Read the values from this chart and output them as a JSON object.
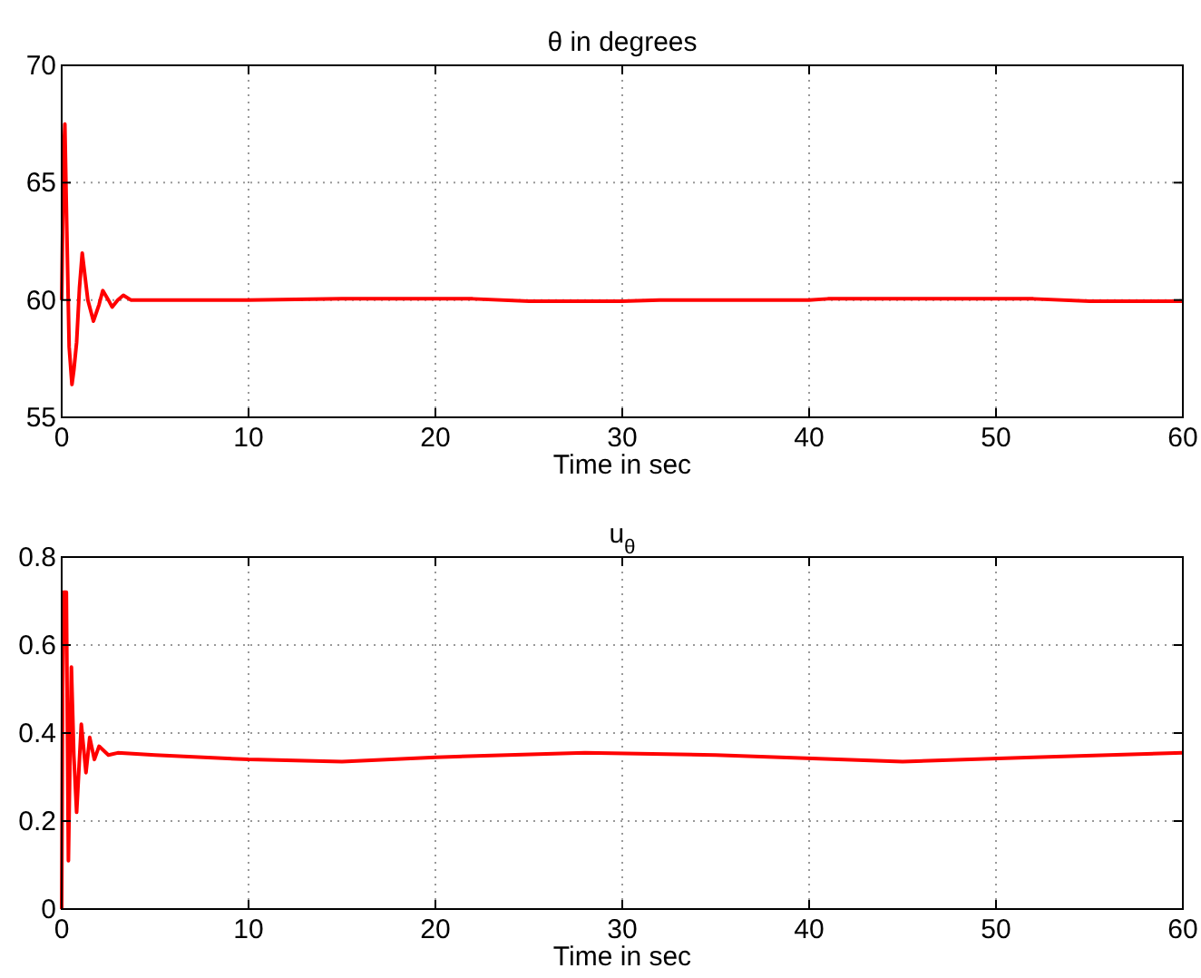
{
  "chart_data": [
    {
      "type": "line",
      "title": "θ in degrees",
      "xlabel": "Time in sec",
      "xlim": [
        0,
        60
      ],
      "xticks": [
        0,
        10,
        20,
        30,
        40,
        50,
        60
      ],
      "ylim": [
        55,
        70
      ],
      "yticks": [
        55,
        60,
        65,
        70
      ],
      "grid": true,
      "series": [
        {
          "color": "#ff0000",
          "x": [
            0,
            0.1,
            0.17,
            0.25,
            0.4,
            0.55,
            0.65,
            0.8,
            0.95,
            1.1,
            1.4,
            1.7,
            2.0,
            2.2,
            2.5,
            2.7,
            3.0,
            3.3,
            3.7,
            4,
            6,
            10,
            15,
            22,
            25,
            30,
            32,
            40,
            41,
            45,
            52,
            55,
            60
          ],
          "values": [
            60,
            66,
            67.5,
            64,
            58,
            56.4,
            57,
            58.2,
            60.5,
            62,
            60,
            59.1,
            59.8,
            60.4,
            60,
            59.7,
            60,
            60.2,
            60,
            60,
            60,
            60,
            60.05,
            60.05,
            59.95,
            59.95,
            60,
            60,
            60.05,
            60.05,
            60.05,
            59.95,
            59.95
          ]
        }
      ]
    },
    {
      "type": "line",
      "title": "u$_{θ}$",
      "xlabel": "Time in sec",
      "xlim": [
        0,
        60
      ],
      "xticks": [
        0,
        10,
        20,
        30,
        40,
        50,
        60
      ],
      "ylim": [
        0,
        0.8
      ],
      "yticks": [
        0,
        0.2,
        0.4,
        0.6,
        0.8
      ],
      "grid": true,
      "series": [
        {
          "color": "#ff0000",
          "x": [
            0,
            0.05,
            0.1,
            0.25,
            0.36,
            0.52,
            0.65,
            0.8,
            1.05,
            1.3,
            1.5,
            1.75,
            2.0,
            2.5,
            3,
            5,
            10,
            15,
            20,
            28,
            35,
            45,
            52,
            60
          ],
          "values": [
            0,
            0.5,
            0.72,
            0.72,
            0.11,
            0.55,
            0.35,
            0.22,
            0.42,
            0.31,
            0.39,
            0.34,
            0.37,
            0.35,
            0.355,
            0.35,
            0.34,
            0.335,
            0.345,
            0.355,
            0.35,
            0.335,
            0.345,
            0.355
          ]
        }
      ]
    }
  ]
}
